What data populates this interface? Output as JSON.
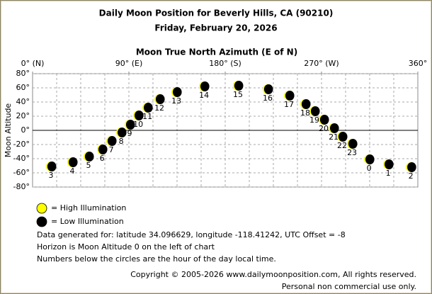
{
  "chart_data": {
    "type": "scatter",
    "title": "Daily Moon Position for Beverly Hills, CA (90210)",
    "subtitle": "Friday, February 20, 2026",
    "x_axis_label": "Moon True North Azimuth (E of N)",
    "y_axis_label": "Moon Altitude",
    "xlim": [
      0,
      360
    ],
    "ylim": [
      -80,
      80
    ],
    "xticks": [
      {
        "value": 0,
        "label": "0° (N)"
      },
      {
        "value": 90,
        "label": "90° (E)"
      },
      {
        "value": 180,
        "label": "180° (S)"
      },
      {
        "value": 270,
        "label": "270° (W)"
      },
      {
        "value": 360,
        "label": "360°"
      }
    ],
    "yticks": [
      {
        "value": 80,
        "label": "80°"
      },
      {
        "value": 60,
        "label": "60°"
      },
      {
        "value": 40,
        "label": "40°"
      },
      {
        "value": 20,
        "label": "20°"
      },
      {
        "value": 0,
        "label": "0°"
      },
      {
        "value": -20,
        "label": "-20°"
      },
      {
        "value": -40,
        "label": "-40°"
      },
      {
        "value": -60,
        "label": "-60°"
      },
      {
        "value": -80,
        "label": "-80°"
      }
    ],
    "xgrid": [
      22.5,
      45,
      67.5,
      90,
      112.5,
      135,
      157.5,
      180,
      202.5,
      225,
      247.5,
      270,
      292.5,
      315,
      337.5
    ],
    "grid": true,
    "series": [
      {
        "color": "#000000",
        "x": [
          17.2,
          37.1,
          52.3,
          64.9,
          73.5,
          82.8,
          90.7,
          98.7,
          107.3,
          118.5,
          134.4,
          160.2,
          191.9,
          219.7,
          239.6,
          254.8,
          263.4,
          272.0,
          281.3,
          289.2,
          298.5,
          314.4,
          332.3,
          353.5
        ],
        "values": [
          -51,
          -45,
          -37,
          -27,
          -15,
          -3,
          8,
          21,
          32,
          44,
          54,
          62,
          63,
          58,
          49,
          37,
          27,
          15,
          3,
          -9,
          -19,
          -41,
          -48,
          -52
        ],
        "point_labels": [
          3,
          4,
          5,
          6,
          7,
          8,
          9,
          10,
          11,
          12,
          13,
          14,
          15,
          16,
          17,
          18,
          19,
          20,
          21,
          22,
          23,
          0,
          1,
          2
        ]
      }
    ],
    "legend": [
      {
        "label": "= High Illumination",
        "color": "#ffff00"
      },
      {
        "label": "= Low Illumination",
        "color": "#000000"
      }
    ],
    "notes": [
      "Data generated for: latitude 34.096629, longitude -118.41242, UTC Offset = -8",
      "Horizon is Moon Altitude 0 on the left of chart",
      "Numbers below the circles are the hour of the day local time."
    ],
    "copyright": [
      "Copyright © 2005-2026 www.dailymoonposition.com, All rights reserved.",
      "Personal non commercial use only."
    ]
  }
}
